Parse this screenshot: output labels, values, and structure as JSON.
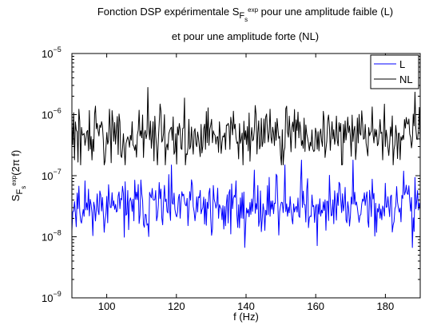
{
  "chart_data": {
    "type": "line",
    "title_lines": [
      {
        "before": "Fonction DSP expérimentale S",
        "sub": "F",
        "subsub": "s",
        "sup": "exp",
        "after": " pour une amplitude faible (L)"
      },
      {
        "text": "et pour une amplitude forte (NL)"
      }
    ],
    "xlabel": "f (Hz)",
    "ylabel": {
      "before": "S",
      "sub": "F",
      "subsub": "s",
      "sup": "exp",
      "after": "(2π f)"
    },
    "xlim": [
      90,
      190
    ],
    "ylim": [
      1e-09,
      1e-05
    ],
    "yscale": "log",
    "xticks": [
      100,
      120,
      140,
      160,
      180
    ],
    "yticks": [
      {
        "value": 1e-09,
        "mantissa": "10",
        "exp": "−9"
      },
      {
        "value": 1e-08,
        "mantissa": "10",
        "exp": "−8"
      },
      {
        "value": 1e-07,
        "mantissa": "10",
        "exp": "−7"
      },
      {
        "value": 1e-06,
        "mantissa": "10",
        "exp": "−6"
      },
      {
        "value": 1e-05,
        "mantissa": "10",
        "exp": "−5"
      }
    ],
    "legend_position": "top-right",
    "grid": false,
    "series": [
      {
        "name": "L",
        "color": "#0000ff",
        "x_start": 90,
        "x_end": 190,
        "points": 400,
        "median": 3.2e-08,
        "min": 3e-09,
        "max": 1.8e-07,
        "seed": 11
      },
      {
        "name": "NL",
        "color": "#000000",
        "x_start": 90,
        "x_end": 190,
        "points": 400,
        "median": 4.5e-07,
        "min": 1.5e-07,
        "max": 3e-06,
        "seed": 29
      }
    ]
  }
}
